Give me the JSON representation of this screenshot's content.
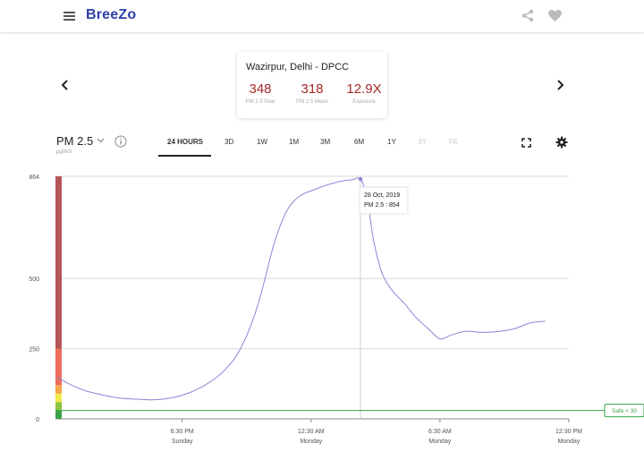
{
  "header": {
    "logo": "BreeZo"
  },
  "station": {
    "name": "Wazirpur, Delhi - DPCC",
    "stats": [
      {
        "value": "348",
        "label": "PM 2.5 Now"
      },
      {
        "value": "318",
        "label": "PM 2.5 Mean"
      },
      {
        "value": "12.9X",
        "label": "Exposure"
      }
    ]
  },
  "parameter": {
    "name": "PM 2.5",
    "unit": "μg/m3"
  },
  "ranges": [
    {
      "label": "24 HOURS",
      "state": "active"
    },
    {
      "label": "3D",
      "state": "normal"
    },
    {
      "label": "1W",
      "state": "normal"
    },
    {
      "label": "1M",
      "state": "normal"
    },
    {
      "label": "3M",
      "state": "normal"
    },
    {
      "label": "6M",
      "state": "normal"
    },
    {
      "label": "1Y",
      "state": "normal"
    },
    {
      "label": "3Y",
      "state": "disabled"
    },
    {
      "label": "FE",
      "state": "disabled"
    }
  ],
  "chart_data": {
    "type": "line",
    "y_ticks": [
      0,
      250,
      500,
      864
    ],
    "ylim": [
      0,
      864
    ],
    "x_ticks": [
      {
        "t": 18.5,
        "time": "6:30 PM",
        "day": "Sunday"
      },
      {
        "t": 24.5,
        "time": "12:30 AM",
        "day": "Monday"
      },
      {
        "t": 30.5,
        "time": "6:30 AM",
        "day": "Monday"
      },
      {
        "t": 36.5,
        "time": "12:30 PM",
        "day": "Monday"
      }
    ],
    "xlim": [
      12.6,
      36.5
    ],
    "series": [
      {
        "color": "#8b87d4",
        "points": [
          [
            12.7,
            148
          ],
          [
            13.3,
            122
          ],
          [
            14.0,
            100
          ],
          [
            14.8,
            85
          ],
          [
            15.6,
            74
          ],
          [
            16.4,
            70
          ],
          [
            17.2,
            68
          ],
          [
            18.0,
            75
          ],
          [
            18.8,
            92
          ],
          [
            19.6,
            122
          ],
          [
            20.4,
            168
          ],
          [
            21.2,
            248
          ],
          [
            22.0,
            400
          ],
          [
            22.8,
            630
          ],
          [
            23.4,
            745
          ],
          [
            24.0,
            795
          ],
          [
            24.6,
            815
          ],
          [
            25.2,
            832
          ],
          [
            25.8,
            845
          ],
          [
            26.4,
            852
          ],
          [
            26.8,
            854
          ],
          [
            27.1,
            790
          ],
          [
            27.4,
            640
          ],
          [
            27.8,
            520
          ],
          [
            28.3,
            455
          ],
          [
            28.8,
            415
          ],
          [
            29.4,
            360
          ],
          [
            30.0,
            318
          ],
          [
            30.5,
            285
          ],
          [
            31.0,
            298
          ],
          [
            31.7,
            312
          ],
          [
            32.5,
            308
          ],
          [
            33.3,
            312
          ],
          [
            34.0,
            322
          ],
          [
            34.7,
            342
          ],
          [
            35.4,
            348
          ]
        ]
      }
    ],
    "highlight": {
      "t": 26.8,
      "value": 854
    },
    "tooltip": {
      "date": "28 Oct, 2019",
      "reading": "PM 2.5 : 854"
    },
    "safe_line": {
      "value": 30,
      "label": "Safe < 30"
    },
    "aqi_bands": [
      {
        "from": 0,
        "to": 30,
        "color": "#3aa14a"
      },
      {
        "from": 30,
        "to": 60,
        "color": "#8cc63f"
      },
      {
        "from": 60,
        "to": 90,
        "color": "#f2e94e"
      },
      {
        "from": 90,
        "to": 120,
        "color": "#f7a64a"
      },
      {
        "from": 120,
        "to": 250,
        "color": "#ee6c5e"
      },
      {
        "from": 250,
        "to": 864,
        "color": "#b5575a"
      }
    ]
  }
}
